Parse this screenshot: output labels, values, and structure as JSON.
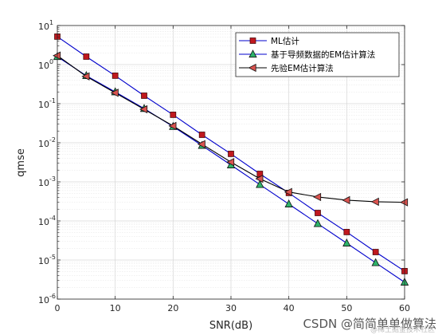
{
  "chart_data": {
    "type": "line",
    "xlabel": "SNR(dB)",
    "ylabel": "qmse",
    "xlim": [
      0,
      60
    ],
    "ylim": [
      1e-06,
      10
    ],
    "yscale": "log",
    "grid": true,
    "minor_grid": true,
    "legend_position": "top-right",
    "x": [
      0,
      5,
      10,
      15,
      20,
      25,
      30,
      35,
      40,
      45,
      50,
      55,
      60
    ],
    "x_ticks": [
      "0",
      "10",
      "20",
      "30",
      "40",
      "50",
      "60"
    ],
    "y_ticks": [
      {
        "base": "10",
        "exp": "-6"
      },
      {
        "base": "10",
        "exp": "-5"
      },
      {
        "base": "10",
        "exp": "-4"
      },
      {
        "base": "10",
        "exp": "-3"
      },
      {
        "base": "10",
        "exp": "-2"
      },
      {
        "base": "10",
        "exp": "-1"
      },
      {
        "base": "10",
        "exp": "0"
      },
      {
        "base": "10",
        "exp": "1"
      }
    ],
    "series": [
      {
        "name": "ML估计",
        "line_color": "#0000cc",
        "marker": "square",
        "marker_color": "#c0181f",
        "values": [
          5.2,
          1.6,
          0.52,
          0.16,
          0.052,
          0.016,
          0.0052,
          0.0016,
          0.00052,
          0.00016,
          5.2e-05,
          1.6e-05,
          5.2e-06
        ]
      },
      {
        "name": "基于导频数据的EM估计算法",
        "line_color": "#0000cc",
        "marker": "triangle",
        "marker_color": "#2db36a",
        "values": [
          1.6,
          0.52,
          0.2,
          0.075,
          0.026,
          0.0085,
          0.0027,
          0.00085,
          0.00027,
          8.5e-05,
          2.7e-05,
          8.5e-06,
          2.7e-06
        ]
      },
      {
        "name": "先验EM估计算法",
        "line_color": "#000000",
        "marker": "triangle-left",
        "marker_color": "#d9534f",
        "values": [
          1.7,
          0.5,
          0.19,
          0.072,
          0.027,
          0.0092,
          0.0032,
          0.0012,
          0.00055,
          0.00041,
          0.00034,
          0.00031,
          0.0003
        ]
      }
    ]
  },
  "watermark": {
    "text": "CSDN @简简单单做算法",
    "subtext": "@稀土掘金技术社区"
  }
}
